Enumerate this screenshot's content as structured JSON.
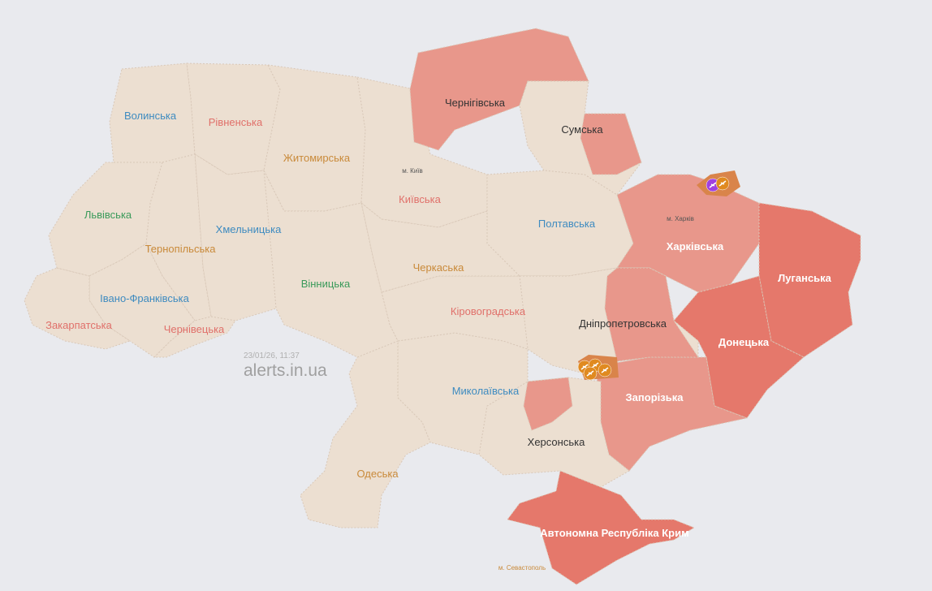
{
  "colors": {
    "background": "#e9eaee",
    "no_alert": "#ecdfd1",
    "alert": "#e8978b",
    "alert_strong": "#e5786b",
    "partial": "#d9844a"
  },
  "regions": [
    {
      "id": "volyn",
      "label": "Волинська",
      "label_color": "#3e8bc0",
      "status": "none"
    },
    {
      "id": "rivne",
      "label": "Рівненська",
      "label_color": "#e0706a",
      "status": "none"
    },
    {
      "id": "zhytomyr",
      "label": "Житомирська",
      "label_color": "#c98a3a",
      "status": "none"
    },
    {
      "id": "kyivska",
      "label": "Київська",
      "label_color": "#e0706a",
      "status": "none"
    },
    {
      "id": "chernihiv",
      "label": "Чернігівська",
      "label_color": "#333333",
      "status": "alert"
    },
    {
      "id": "sumy",
      "label": "Сумська",
      "label_color": "#333333",
      "status": "partial"
    },
    {
      "id": "poltava",
      "label": "Полтавська",
      "label_color": "#3e8bc0",
      "status": "none"
    },
    {
      "id": "kharkiv",
      "label": "Харківська",
      "label_color": "#ffffff",
      "status": "alert"
    },
    {
      "id": "luhansk",
      "label": "Луганська",
      "label_color": "#ffffff",
      "status": "alert_strong"
    },
    {
      "id": "donetsk",
      "label": "Донецька",
      "label_color": "#ffffff",
      "status": "alert_strong"
    },
    {
      "id": "dnipro",
      "label": "Дніпропетровська",
      "label_color": "#333333",
      "status": "partial"
    },
    {
      "id": "zaporizhzhia",
      "label": "Запорізька",
      "label_color": "#ffffff",
      "status": "alert"
    },
    {
      "id": "kherson",
      "label": "Херсонська",
      "label_color": "#333333",
      "status": "partial"
    },
    {
      "id": "crimea",
      "label": "Автономна Республіка Крим",
      "label_color": "#ffffff",
      "status": "alert_strong"
    },
    {
      "id": "mykolaiv",
      "label": "Миколаївська",
      "label_color": "#3e8bc0",
      "status": "none"
    },
    {
      "id": "odesa",
      "label": "Одеська",
      "label_color": "#c98a3a",
      "status": "none"
    },
    {
      "id": "kirovohrad",
      "label": "Кіровоградська",
      "label_color": "#e0706a",
      "status": "none"
    },
    {
      "id": "cherkasy",
      "label": "Черкаська",
      "label_color": "#c98a3a",
      "status": "none"
    },
    {
      "id": "vinnytsia",
      "label": "Вінницька",
      "label_color": "#3a9a5a",
      "status": "none"
    },
    {
      "id": "khmelnytskyi",
      "label": "Хмельницька",
      "label_color": "#3e8bc0",
      "status": "none"
    },
    {
      "id": "ternopil",
      "label": "Тернопільська",
      "label_color": "#c98a3a",
      "status": "none"
    },
    {
      "id": "lviv",
      "label": "Львівська",
      "label_color": "#3a9a5a",
      "status": "none"
    },
    {
      "id": "ivano",
      "label": "Івано-Франківська",
      "label_color": "#3e8bc0",
      "status": "none"
    },
    {
      "id": "chernivtsi",
      "label": "Чернівецька",
      "label_color": "#e0706a",
      "status": "none"
    },
    {
      "id": "zakarpattia",
      "label": "Закарпатська",
      "label_color": "#e0706a",
      "status": "none"
    }
  ],
  "cities": {
    "kyiv": "м. Київ",
    "kharkiv": "м. Харків",
    "sevastopol": "м. Севастополь"
  },
  "threat_icons": [
    {
      "type": "ballistic-icon",
      "color": "#a040e0",
      "region": "kharkiv"
    },
    {
      "type": "drone-icon",
      "color": "#e08a20",
      "region": "kharkiv"
    },
    {
      "type": "drone-icon",
      "color": "#e08a20",
      "region": "dnipro"
    },
    {
      "type": "drone-icon",
      "color": "#e08a20",
      "region": "dnipro"
    },
    {
      "type": "drone-icon",
      "color": "#e08a20",
      "region": "dnipro"
    },
    {
      "type": "drone-icon",
      "color": "#e08a20",
      "region": "dnipro"
    }
  ],
  "timestamp": "23/01/26, 11:37",
  "brand": "alerts.in.ua"
}
